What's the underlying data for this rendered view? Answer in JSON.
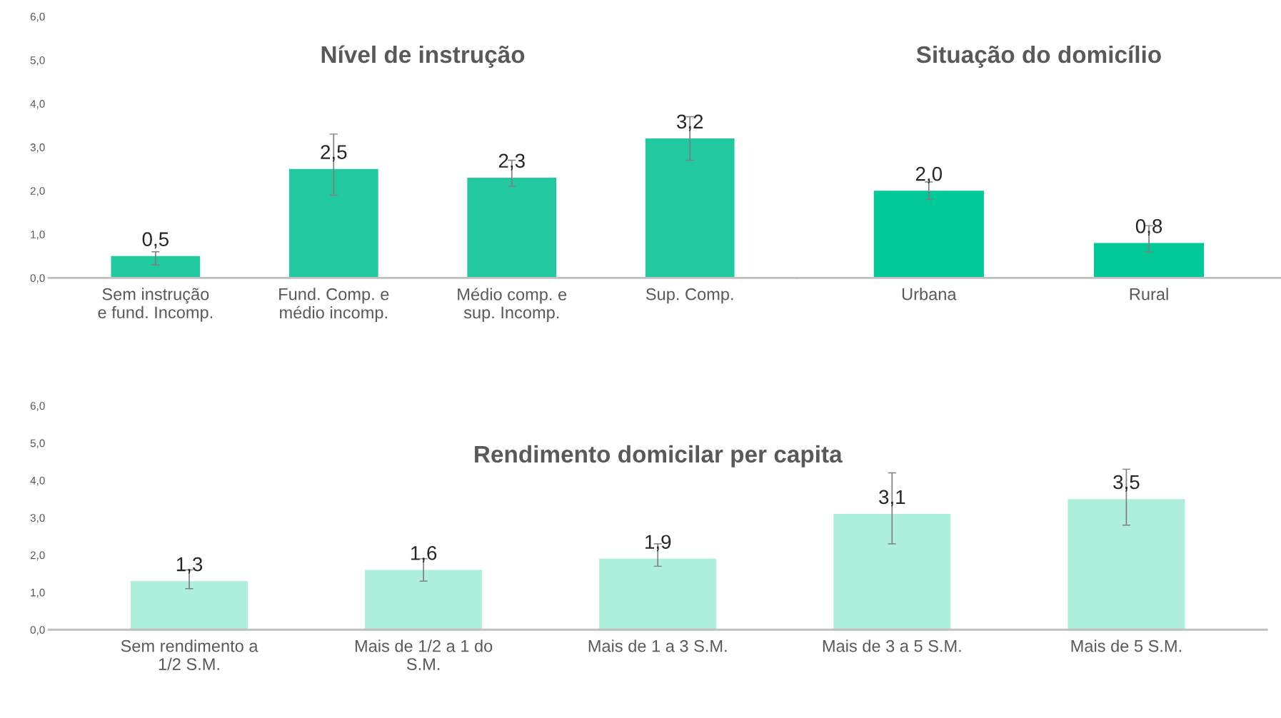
{
  "chart_data": [
    {
      "type": "bar",
      "title": "Nível de instrução",
      "categories": [
        "Sem instrução\ne fund. Incomp.",
        "Fund. Comp. e\nmédio incomp.",
        "Médio comp. e\nsup. Incomp.",
        "Sup. Comp."
      ],
      "values": [
        0.5,
        2.5,
        2.3,
        3.2
      ],
      "value_labels": [
        "0,5",
        "2,5",
        "2,3",
        "3,2"
      ],
      "errors": [
        [
          0.3,
          0.6
        ],
        [
          1.9,
          3.3
        ],
        [
          2.1,
          2.7
        ],
        [
          2.7,
          3.7
        ]
      ],
      "color": "#22c9a0",
      "ylim": [
        0,
        6
      ],
      "yticks": [
        {
          "value": 0,
          "label": "0,0"
        },
        {
          "value": 1,
          "label": "1,0"
        },
        {
          "value": 2,
          "label": "2,0"
        },
        {
          "value": 3,
          "label": "3,0"
        },
        {
          "value": 4,
          "label": "4,0"
        },
        {
          "value": 5,
          "label": "5,0"
        },
        {
          "value": 6,
          "label": "6,0"
        }
      ],
      "grid": false,
      "legend": false
    },
    {
      "type": "bar",
      "title": "Situação do domicílio",
      "categories": [
        "Urbana",
        "Rural"
      ],
      "values": [
        2.0,
        0.8
      ],
      "value_labels": [
        "2,0",
        "0,8"
      ],
      "errors": [
        [
          1.8,
          2.2
        ],
        [
          0.6,
          1.2
        ]
      ],
      "color": "#00c896",
      "ylim": [
        0,
        6
      ],
      "tick_labels": "x",
      "grid": false,
      "legend": false
    },
    {
      "type": "bar",
      "title": "Rendimento domicilar per capita",
      "categories": [
        "Sem rendimento a\n1/2 S.M.",
        "Mais de 1/2 a 1 do\nS.M.",
        "Mais de 1 a 3 S.M.",
        "Mais de 3 a 5 S.M.",
        "Mais de 5 S.M."
      ],
      "values": [
        1.3,
        1.6,
        1.9,
        3.1,
        3.5
      ],
      "value_labels": [
        "1,3",
        "1,6",
        "1,9",
        "3,1",
        "3,5"
      ],
      "errors": [
        [
          1.1,
          1.6
        ],
        [
          1.3,
          1.9
        ],
        [
          1.7,
          2.3
        ],
        [
          2.3,
          4.2
        ],
        [
          2.8,
          4.3
        ]
      ],
      "color": "#aef0dc",
      "ylim": [
        0,
        6
      ],
      "yticks": [
        {
          "value": 0,
          "label": "0,0"
        },
        {
          "value": 1,
          "label": "1,0"
        },
        {
          "value": 2,
          "label": "2,0"
        },
        {
          "value": 3,
          "label": "3,0"
        },
        {
          "value": 4,
          "label": "4,0"
        },
        {
          "value": 5,
          "label": "5,0"
        },
        {
          "value": 6,
          "label": "6,0"
        }
      ],
      "grid": false,
      "legend": false
    }
  ]
}
